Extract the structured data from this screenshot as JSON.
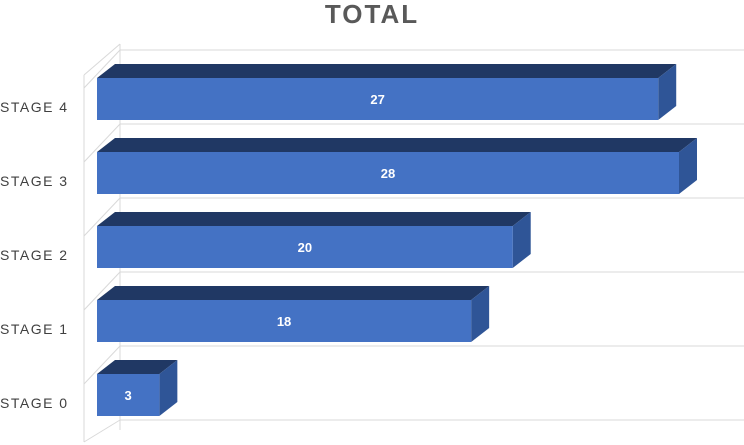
{
  "chart_data": {
    "type": "bar",
    "orientation": "horizontal",
    "style": "3d",
    "title": "TOTAL",
    "categories": [
      "STAGE 0",
      "STAGE 1",
      "STAGE 2",
      "STAGE 3",
      "STAGE 4"
    ],
    "values": [
      3,
      18,
      20,
      28,
      27
    ],
    "data_labels": [
      "3",
      "18",
      "20",
      "28",
      "27"
    ],
    "xlim": [
      0,
      30
    ],
    "grid": true,
    "legend": "none",
    "colors": {
      "bar_front": "#4472C4",
      "bar_top": "#203864",
      "bar_side": "#2F5597",
      "label_text": "#ffffff",
      "axis_text": "#404040",
      "title_text": "#595959",
      "grid": "#d9d9d9"
    }
  }
}
